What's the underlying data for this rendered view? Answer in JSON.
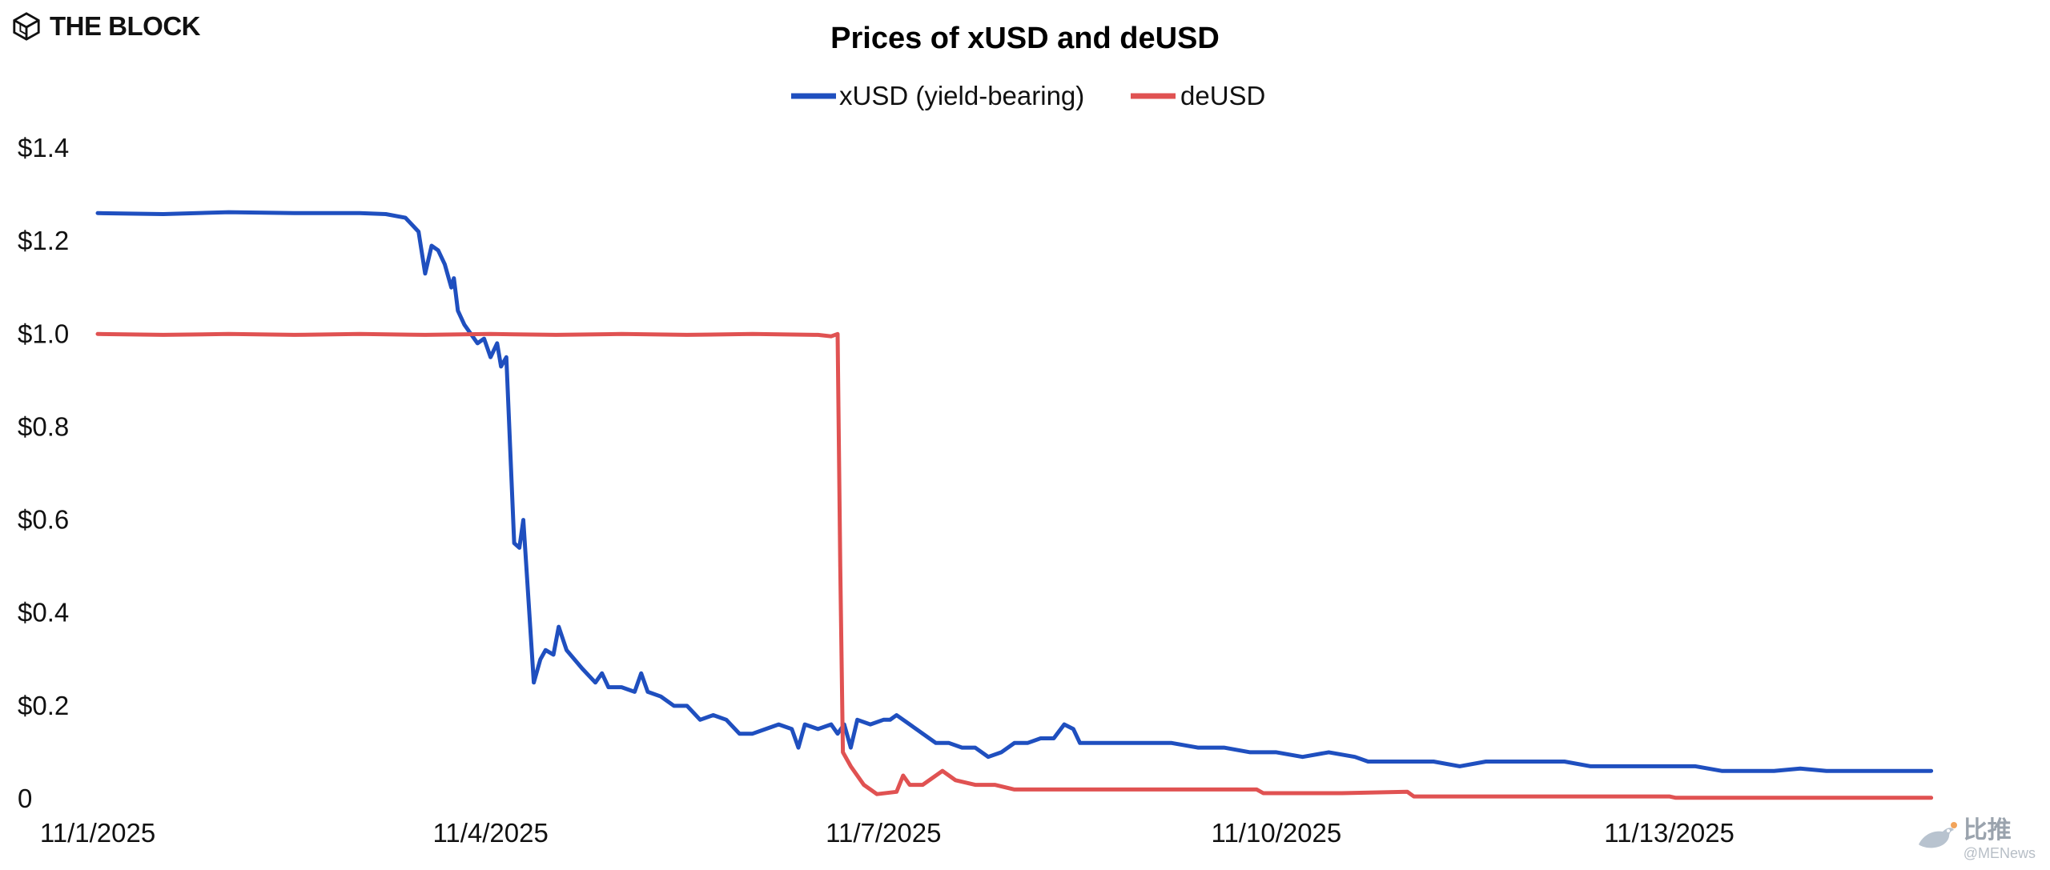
{
  "brand": {
    "name": "THE BLOCK",
    "icon": "cube-logo-icon"
  },
  "watermark": {
    "text": "比推",
    "handle": "@MENews",
    "icon": "bird-logo-icon"
  },
  "colors": {
    "xusd": "#1f4fbf",
    "deusd": "#e05252"
  },
  "chart_data": {
    "type": "line",
    "title": "Prices of xUSD and deUSD",
    "xlabel": "",
    "ylabel": "",
    "ylim": [
      0,
      1.4
    ],
    "yticks": [
      "$1.4",
      "$1.2",
      "$1.0",
      "$0.8",
      "$0.6",
      "$0.4",
      "$0.2",
      "0"
    ],
    "ytick_values": [
      1.4,
      1.2,
      1.0,
      0.8,
      0.6,
      0.4,
      0.2,
      0
    ],
    "xticks": [
      "11/1/2025",
      "11/4/2025",
      "11/7/2025",
      "11/10/2025",
      "11/13/2025"
    ],
    "xtick_values": [
      0,
      3,
      6,
      9,
      12
    ],
    "xlim": [
      0,
      14.1
    ],
    "grid": false,
    "legend_position": "top-center",
    "series": [
      {
        "name": "xUSD (yield-bearing)",
        "color": "#1f4fbf",
        "points": [
          [
            0,
            1.26
          ],
          [
            0.5,
            1.258
          ],
          [
            1.0,
            1.262
          ],
          [
            1.5,
            1.26
          ],
          [
            2.0,
            1.26
          ],
          [
            2.2,
            1.258
          ],
          [
            2.35,
            1.25
          ],
          [
            2.45,
            1.22
          ],
          [
            2.5,
            1.13
          ],
          [
            2.55,
            1.19
          ],
          [
            2.6,
            1.18
          ],
          [
            2.65,
            1.15
          ],
          [
            2.7,
            1.1
          ],
          [
            2.72,
            1.12
          ],
          [
            2.75,
            1.05
          ],
          [
            2.8,
            1.02
          ],
          [
            2.85,
            1.0
          ],
          [
            2.9,
            0.98
          ],
          [
            2.95,
            0.99
          ],
          [
            3.0,
            0.95
          ],
          [
            3.05,
            0.98
          ],
          [
            3.08,
            0.93
          ],
          [
            3.12,
            0.95
          ],
          [
            3.18,
            0.55
          ],
          [
            3.22,
            0.54
          ],
          [
            3.25,
            0.6
          ],
          [
            3.28,
            0.47
          ],
          [
            3.33,
            0.25
          ],
          [
            3.38,
            0.3
          ],
          [
            3.42,
            0.32
          ],
          [
            3.48,
            0.31
          ],
          [
            3.52,
            0.37
          ],
          [
            3.58,
            0.32
          ],
          [
            3.7,
            0.28
          ],
          [
            3.8,
            0.25
          ],
          [
            3.85,
            0.27
          ],
          [
            3.9,
            0.24
          ],
          [
            4.0,
            0.24
          ],
          [
            4.1,
            0.23
          ],
          [
            4.15,
            0.27
          ],
          [
            4.2,
            0.23
          ],
          [
            4.3,
            0.22
          ],
          [
            4.4,
            0.2
          ],
          [
            4.5,
            0.2
          ],
          [
            4.6,
            0.17
          ],
          [
            4.7,
            0.18
          ],
          [
            4.8,
            0.17
          ],
          [
            4.9,
            0.14
          ],
          [
            5.0,
            0.14
          ],
          [
            5.1,
            0.15
          ],
          [
            5.2,
            0.16
          ],
          [
            5.3,
            0.15
          ],
          [
            5.35,
            0.11
          ],
          [
            5.4,
            0.16
          ],
          [
            5.5,
            0.15
          ],
          [
            5.6,
            0.16
          ],
          [
            5.65,
            0.14
          ],
          [
            5.7,
            0.16
          ],
          [
            5.75,
            0.11
          ],
          [
            5.8,
            0.17
          ],
          [
            5.9,
            0.16
          ],
          [
            6.0,
            0.17
          ],
          [
            6.05,
            0.17
          ],
          [
            6.1,
            0.18
          ],
          [
            6.2,
            0.16
          ],
          [
            6.3,
            0.14
          ],
          [
            6.4,
            0.12
          ],
          [
            6.5,
            0.12
          ],
          [
            6.6,
            0.11
          ],
          [
            6.7,
            0.11
          ],
          [
            6.8,
            0.09
          ],
          [
            6.9,
            0.1
          ],
          [
            7.0,
            0.12
          ],
          [
            7.1,
            0.12
          ],
          [
            7.2,
            0.13
          ],
          [
            7.3,
            0.13
          ],
          [
            7.38,
            0.16
          ],
          [
            7.45,
            0.15
          ],
          [
            7.5,
            0.12
          ],
          [
            7.6,
            0.12
          ],
          [
            7.8,
            0.12
          ],
          [
            8.0,
            0.12
          ],
          [
            8.2,
            0.12
          ],
          [
            8.4,
            0.11
          ],
          [
            8.6,
            0.11
          ],
          [
            8.8,
            0.1
          ],
          [
            9.0,
            0.1
          ],
          [
            9.2,
            0.09
          ],
          [
            9.4,
            0.1
          ],
          [
            9.6,
            0.09
          ],
          [
            9.7,
            0.08
          ],
          [
            9.8,
            0.08
          ],
          [
            10.0,
            0.08
          ],
          [
            10.2,
            0.08
          ],
          [
            10.4,
            0.07
          ],
          [
            10.6,
            0.08
          ],
          [
            10.8,
            0.08
          ],
          [
            11.0,
            0.08
          ],
          [
            11.2,
            0.08
          ],
          [
            11.4,
            0.07
          ],
          [
            11.6,
            0.07
          ],
          [
            11.8,
            0.07
          ],
          [
            12.0,
            0.07
          ],
          [
            12.2,
            0.07
          ],
          [
            12.4,
            0.06
          ],
          [
            12.6,
            0.06
          ],
          [
            12.8,
            0.06
          ],
          [
            13.0,
            0.065
          ],
          [
            13.2,
            0.06
          ],
          [
            13.4,
            0.06
          ],
          [
            13.6,
            0.06
          ],
          [
            13.8,
            0.06
          ],
          [
            14.0,
            0.06
          ]
        ]
      },
      {
        "name": "deUSD",
        "color": "#e05252",
        "points": [
          [
            0,
            1.0
          ],
          [
            0.5,
            0.998
          ],
          [
            1.0,
            1.0
          ],
          [
            1.5,
            0.998
          ],
          [
            2.0,
            1.0
          ],
          [
            2.5,
            0.998
          ],
          [
            3.0,
            1.0
          ],
          [
            3.5,
            0.998
          ],
          [
            4.0,
            1.0
          ],
          [
            4.5,
            0.998
          ],
          [
            5.0,
            1.0
          ],
          [
            5.5,
            0.998
          ],
          [
            5.6,
            0.995
          ],
          [
            5.65,
            1.0
          ],
          [
            5.67,
            0.5
          ],
          [
            5.69,
            0.1
          ],
          [
            5.75,
            0.07
          ],
          [
            5.85,
            0.03
          ],
          [
            5.95,
            0.01
          ],
          [
            6.1,
            0.015
          ],
          [
            6.15,
            0.05
          ],
          [
            6.2,
            0.03
          ],
          [
            6.3,
            0.03
          ],
          [
            6.45,
            0.06
          ],
          [
            6.55,
            0.04
          ],
          [
            6.7,
            0.03
          ],
          [
            6.85,
            0.03
          ],
          [
            7.0,
            0.02
          ],
          [
            7.5,
            0.02
          ],
          [
            8.0,
            0.02
          ],
          [
            8.5,
            0.02
          ],
          [
            8.85,
            0.02
          ],
          [
            8.9,
            0.012
          ],
          [
            9.5,
            0.012
          ],
          [
            10.0,
            0.015
          ],
          [
            10.05,
            0.005
          ],
          [
            10.5,
            0.005
          ],
          [
            11.0,
            0.005
          ],
          [
            11.5,
            0.005
          ],
          [
            12.0,
            0.005
          ],
          [
            12.05,
            0.002
          ],
          [
            12.5,
            0.002
          ],
          [
            13.0,
            0.002
          ],
          [
            13.5,
            0.002
          ],
          [
            14.0,
            0.002
          ]
        ]
      }
    ]
  }
}
